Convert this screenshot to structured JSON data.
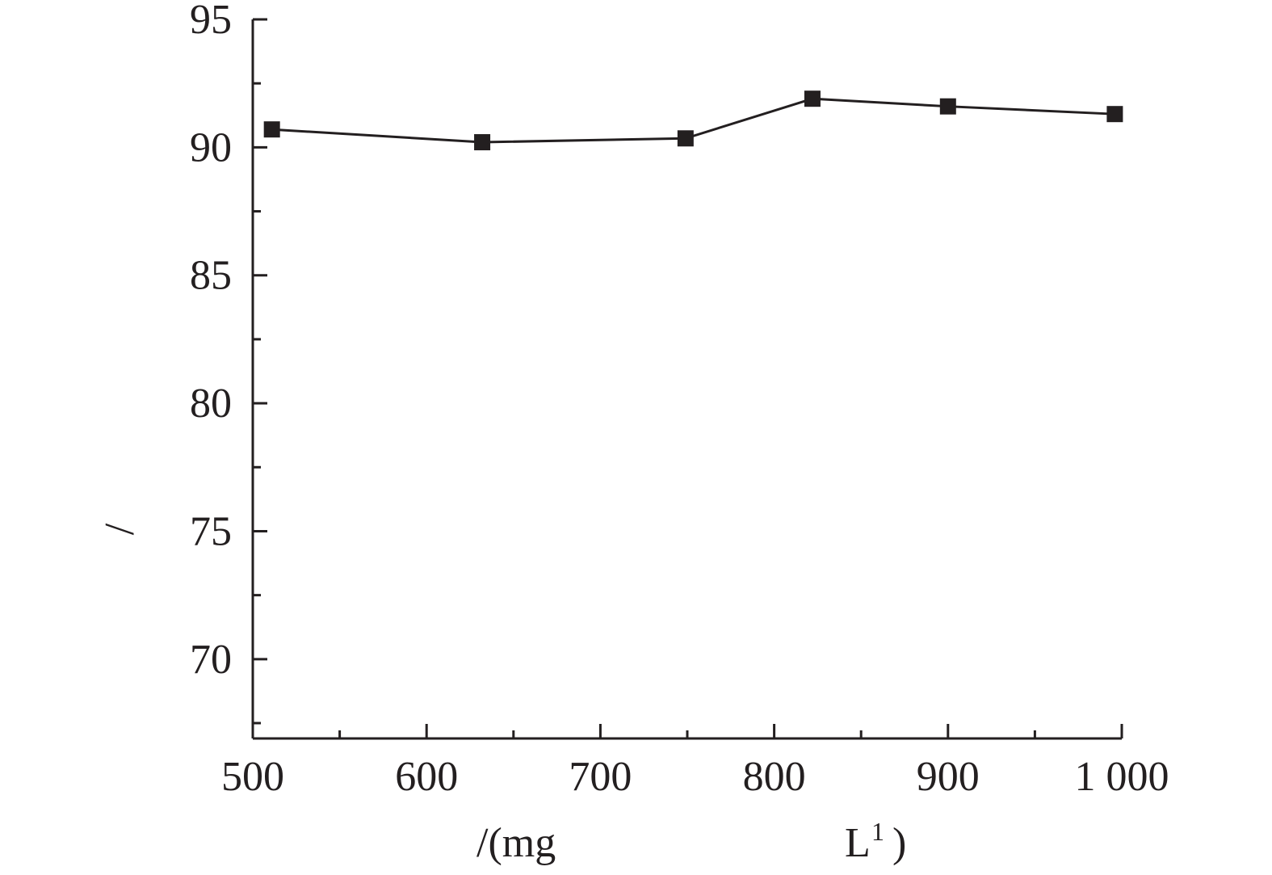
{
  "chart_data": {
    "type": "line",
    "title": "",
    "xlabel_parts": {
      "prefix": "/(mg",
      "unit_letter": "L",
      "superscript": "1",
      "suffix": ")"
    },
    "ylabel": "/",
    "xlim": [
      500,
      1000
    ],
    "ylim": [
      66.9,
      95
    ],
    "x_ticks": [
      500,
      600,
      700,
      800,
      900,
      1000
    ],
    "x_tick_labels": [
      "500",
      "600",
      "700",
      "800",
      "900",
      "1 000"
    ],
    "x_minor_ticks": [
      550,
      650,
      750,
      850,
      950
    ],
    "y_ticks": [
      70,
      75,
      80,
      85,
      90,
      95
    ],
    "y_tick_labels": [
      "70",
      "75",
      "80",
      "85",
      "90",
      "95"
    ],
    "y_minor_ticks": [
      67.5,
      72.5,
      77.5,
      82.5,
      87.5,
      92.5
    ],
    "grid": false,
    "legend": "none",
    "series": [
      {
        "x": [
          511,
          632,
          749,
          822,
          900,
          996
        ],
        "y": [
          90.7,
          90.2,
          90.35,
          91.9,
          91.6,
          91.3
        ],
        "marker": "square",
        "color": "#231f20"
      }
    ]
  }
}
